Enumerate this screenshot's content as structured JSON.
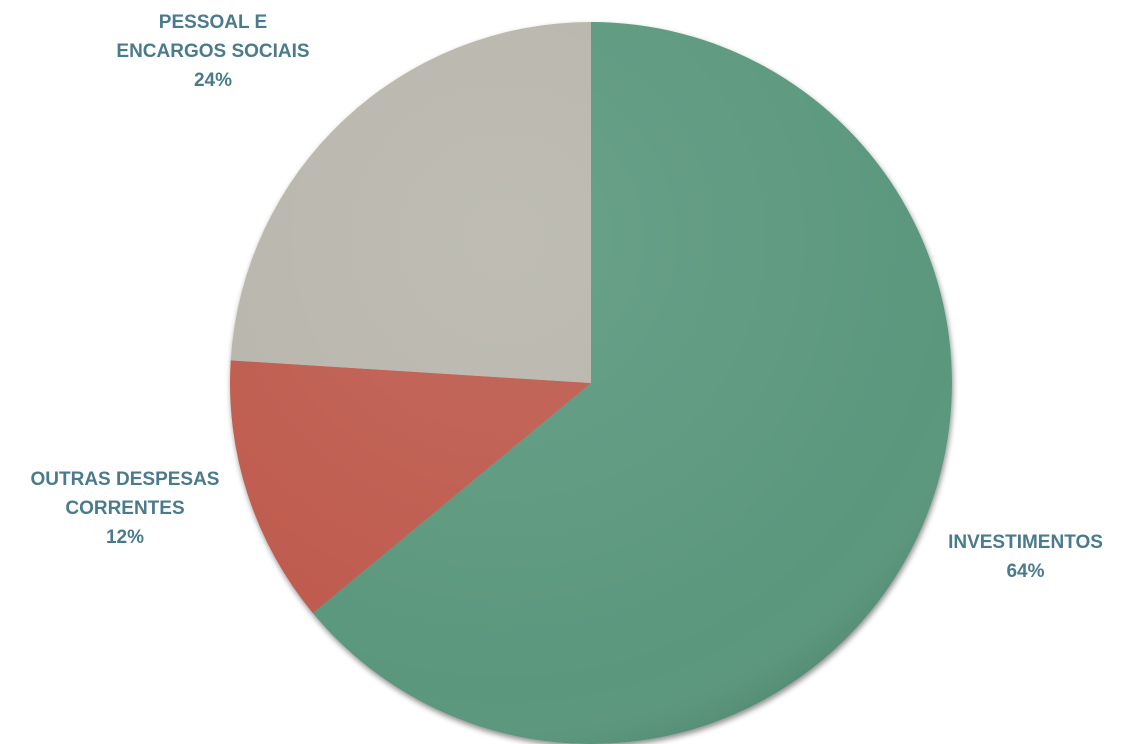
{
  "chart_data": {
    "type": "pie",
    "start_angle_deg": 0,
    "direction": "clockwise",
    "slices": [
      {
        "label": [
          "INVESTIMENTOS"
        ],
        "value": 64,
        "pct_label": "64%",
        "color": "#5a977d"
      },
      {
        "label": [
          "OUTRAS DESPESAS",
          "CORRENTES"
        ],
        "value": 12,
        "pct_label": "12%",
        "color": "#be5a4d"
      },
      {
        "label": [
          "PESSOAL E",
          "ENCARGOS SOCIAIS"
        ],
        "value": 24,
        "pct_label": "24%",
        "color": "#b7b5ab"
      }
    ],
    "label_color": "#4a7b8c"
  }
}
